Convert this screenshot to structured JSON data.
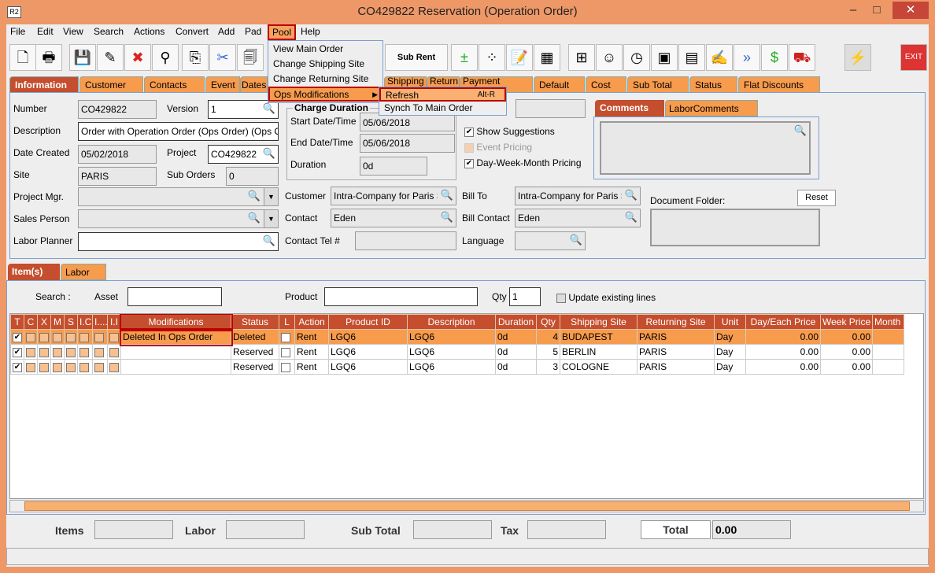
{
  "window": {
    "title": "CO429822 Reservation (Operation Order)",
    "logo": "R2",
    "minimize": "–",
    "maximize": "□",
    "close": "✕"
  },
  "menubar": [
    "File",
    "Edit",
    "View",
    "Search",
    "Actions",
    "Convert",
    "Add",
    "Pad",
    "Pool",
    "Help"
  ],
  "pool_menu": {
    "items": [
      "View Main Order",
      "Change Shipping Site",
      "Change Returning Site",
      "Ops Modifications"
    ],
    "submenu": {
      "refresh": "Refresh",
      "refresh_shortcut": "Alt-R",
      "synch": "Synch To Main Order"
    }
  },
  "toolbar": {
    "sub_rent": "Sub Rent",
    "exit": "EXIT"
  },
  "tabs": [
    "Information",
    "Customer",
    "Contacts",
    "Event",
    "Dates",
    "Shipping",
    "Return",
    "Payment",
    "Default",
    "Cost",
    "Sub Total",
    "Status",
    "Flat Discounts"
  ],
  "info": {
    "number_label": "Number",
    "number": "CO429822",
    "version_label": "Version",
    "version": "1",
    "description_label": "Description",
    "description": "Order with Operation Order (Ops Order) (Ops O",
    "date_created_label": "Date Created",
    "date_created": "05/02/2018",
    "project_label": "Project",
    "project": "CO429822",
    "site_label": "Site",
    "site": "PARIS",
    "sub_orders_label": "Sub Orders",
    "sub_orders": "0",
    "project_mgr_label": "Project Mgr.",
    "sales_person_label": "Sales Person",
    "labor_planner_label": "Labor Planner",
    "charge_duration": "Charge Duration",
    "start_label": "Start Date/Time",
    "start": "05/06/2018",
    "end_label": "End Date/Time",
    "end": "05/06/2018",
    "duration_label": "Duration",
    "duration": "0d",
    "show_suggestions": "Show Suggestions",
    "event_pricing": "Event Pricing",
    "dwm_pricing": "Day-Week-Month Pricing",
    "customer_label": "Customer",
    "customer": "Intra-Company for Paris Site",
    "bill_to_label": "Bill To",
    "bill_to": "Intra-Company for Paris Site",
    "contact_label": "Contact",
    "contact": "Eden",
    "bill_contact_label": "Bill Contact",
    "bill_contact": "Eden",
    "contact_tel_label": "Contact Tel #",
    "language_label": "Language",
    "comments_tab": "Comments",
    "labor_comments_tab": "LaborComments",
    "document_folder_label": "Document Folder:",
    "reset": "Reset"
  },
  "items_tabs": [
    "Item(s)",
    "Labor"
  ],
  "search": {
    "label": "Search :",
    "asset": "Asset",
    "product": "Product",
    "qty_label": "Qty",
    "qty": "1",
    "update_existing": "Update existing lines"
  },
  "table": {
    "columns": [
      "T",
      "C",
      "X",
      "M",
      "S",
      "I.C",
      "I....",
      "I.I",
      "Modifications",
      "Status",
      "L",
      "Action",
      "Product ID",
      "Description",
      "Duration",
      "Qty",
      "Shipping Site",
      "Returning Site",
      "Unit",
      "Day/Each Price",
      "Week Price",
      "Month P"
    ],
    "rows": [
      {
        "modification": "Deleted In Ops Order",
        "status": "Deleted",
        "action": "Rent",
        "product_id": "LGQ6",
        "description": "LGQ6",
        "duration": "0d",
        "qty": "4",
        "shipping": "BUDAPEST",
        "returning": "PARIS",
        "unit": "Day",
        "day_price": "0.00",
        "week_price": "0.00"
      },
      {
        "modification": "",
        "status": "Reserved",
        "action": "Rent",
        "product_id": "LGQ6",
        "description": "LGQ6",
        "duration": "0d",
        "qty": "5",
        "shipping": "BERLIN",
        "returning": "PARIS",
        "unit": "Day",
        "day_price": "0.00",
        "week_price": "0.00"
      },
      {
        "modification": "",
        "status": "Reserved",
        "action": "Rent",
        "product_id": "LGQ6",
        "description": "LGQ6",
        "duration": "0d",
        "qty": "3",
        "shipping": "COLOGNE",
        "returning": "PARIS",
        "unit": "Day",
        "day_price": "0.00",
        "week_price": "0.00"
      }
    ]
  },
  "totals": {
    "items": "Items",
    "labor": "Labor",
    "sub_total": "Sub Total",
    "tax": "Tax",
    "total": "Total",
    "total_value": "0.00"
  }
}
